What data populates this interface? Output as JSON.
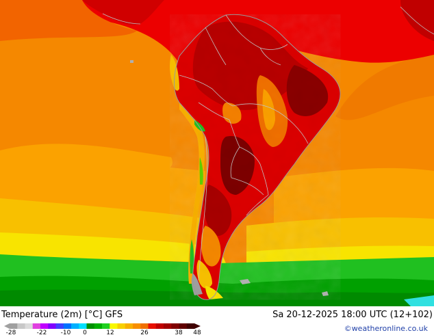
{
  "map": {
    "title": "Temperature (2m) [°C] GFS",
    "valid_time": "Sa 20-12-2025 18:00 UTC (12+102)",
    "credit": "©weatheronline.co.uk",
    "colors": {
      "ocean_warm": "#f07a00",
      "ocean_mid": "#fba200",
      "ocean_cool": "#f8cf00",
      "cold_green": "#20c020",
      "deep_green": "#00a000",
      "hot_red": "#ec0000",
      "very_hot": "#b30000",
      "extreme": "#7d0000",
      "borders": "#c0c0c0"
    }
  },
  "legend": {
    "ticks": [
      "-28",
      "-22",
      "-10",
      "0",
      "12",
      "26",
      "38",
      "48"
    ],
    "colors": [
      "#a0a0a0",
      "#c8c8c8",
      "#dcdcdc",
      "#e040e0",
      "#c000ff",
      "#8000ff",
      "#4040ff",
      "#0070ff",
      "#00b0ff",
      "#00e0ff",
      "#009000",
      "#00b000",
      "#20d020",
      "#f8f800",
      "#f8d000",
      "#f8b000",
      "#f89000",
      "#f07000",
      "#e81000",
      "#c00000",
      "#a00000",
      "#800000",
      "#600000",
      "#400000"
    ]
  }
}
